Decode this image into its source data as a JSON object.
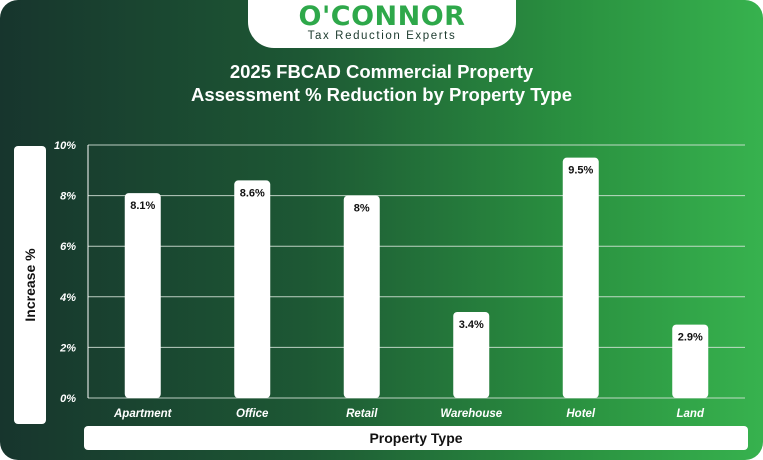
{
  "brand": {
    "name": "O'CONNOR",
    "tagline": "Tax Reduction Experts"
  },
  "chart_data": {
    "type": "bar",
    "title_line1": "2025 FBCAD Commercial Property",
    "title_line2": "Assessment % Reduction by Property Type",
    "xlabel": "Property Type",
    "ylabel": "Increase %",
    "categories": [
      "Apartment",
      "Office",
      "Retail",
      "Warehouse",
      "Hotel",
      "Land"
    ],
    "values": [
      8.1,
      8.6,
      8.0,
      3.4,
      9.5,
      2.9
    ],
    "data_labels": [
      "8.1%",
      "8.6%",
      "8%",
      "3.4%",
      "9.5%",
      "2.9%"
    ],
    "ylim": [
      0,
      10
    ],
    "yticks": [
      0,
      2,
      4,
      6,
      8,
      10
    ],
    "ytick_labels": [
      "0%",
      "2%",
      "4%",
      "6%",
      "8%",
      "10%"
    ],
    "grid": true,
    "colors": {
      "bar": "#ffffff",
      "gridline": "#d9e6dc",
      "bg_start": "#17352d",
      "bg_end": "#37b24e",
      "brand": "#2ea84a"
    }
  }
}
